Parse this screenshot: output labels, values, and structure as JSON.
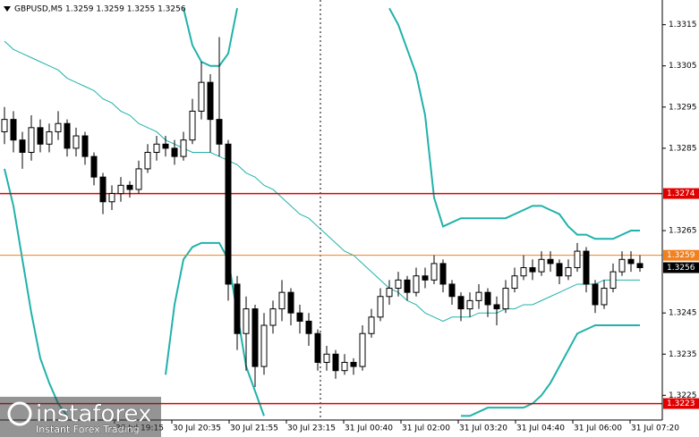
{
  "chart_data": {
    "type": "candlestick",
    "title": "GBPUSD,M5  1.3259 1.3259 1.3255 1.3256",
    "ylim": [
      1.3219,
      1.3321
    ],
    "yticks": [
      1.3315,
      1.3305,
      1.3295,
      1.3285,
      1.3265,
      1.3245,
      1.3235,
      1.3225
    ],
    "time_labels": [
      "30 Jul 19:15",
      "30 Jul 20:35",
      "30 Jul 21:55",
      "30 Jul 23:15",
      "31 Jul 00:40",
      "31 Jul 02:00",
      "31 Jul 03:20",
      "31 Jul 04:40",
      "31 Jul 06:00",
      "31 Jul 07:20"
    ],
    "candle_colors": {
      "up": "#ffffff",
      "down": "#000000",
      "outline": "#000000"
    },
    "open": [
      1.3289,
      1.3292,
      1.3287,
      1.3284,
      1.329,
      1.3286,
      1.3289,
      1.3291,
      1.3285,
      1.3288,
      1.3283,
      1.3278,
      1.3272,
      1.3274,
      1.3276,
      1.3275,
      1.328,
      1.3284,
      1.3286,
      1.3285,
      1.3283,
      1.3287,
      1.3294,
      1.3301,
      1.3292,
      1.3286,
      1.3252,
      1.324,
      1.3246,
      1.3232,
      1.3242,
      1.3246,
      1.325,
      1.3245,
      1.3243,
      1.324,
      1.3233,
      1.3235,
      1.3231,
      1.3233,
      1.3232,
      1.324,
      1.3244,
      1.3249,
      1.3251,
      1.3253,
      1.325,
      1.3254,
      1.3253,
      1.3257,
      1.3252,
      1.3249,
      1.3246,
      1.3248,
      1.325,
      1.3247,
      1.3246,
      1.3251,
      1.3254,
      1.3256,
      1.3255,
      1.3258,
      1.3257,
      1.3254,
      1.3256,
      1.326,
      1.3252,
      1.3247,
      1.3251,
      1.3255,
      1.3258,
      1.3257
    ],
    "high": [
      1.3295,
      1.3294,
      1.3289,
      1.3293,
      1.3292,
      1.3291,
      1.3294,
      1.3292,
      1.329,
      1.3289,
      1.3284,
      1.3279,
      1.3276,
      1.3278,
      1.3277,
      1.3282,
      1.3286,
      1.3288,
      1.3288,
      1.3287,
      1.3289,
      1.3297,
      1.3306,
      1.3303,
      1.3312,
      1.3287,
      1.3254,
      1.3249,
      1.3247,
      1.3245,
      1.3248,
      1.3253,
      1.3251,
      1.3247,
      1.3245,
      1.3241,
      1.3237,
      1.3236,
      1.3235,
      1.3234,
      1.3242,
      1.3246,
      1.3251,
      1.3253,
      1.3255,
      1.3254,
      1.3256,
      1.3256,
      1.3259,
      1.3258,
      1.3253,
      1.325,
      1.325,
      1.3252,
      1.3251,
      1.3249,
      1.3253,
      1.3256,
      1.3259,
      1.3258,
      1.326,
      1.326,
      1.3258,
      1.3258,
      1.3262,
      1.3261,
      1.3253,
      1.3253,
      1.3257,
      1.326,
      1.326,
      1.3259
    ],
    "low": [
      1.3286,
      1.3284,
      1.328,
      1.3282,
      1.3284,
      1.3284,
      1.3287,
      1.3283,
      1.3283,
      1.3281,
      1.3276,
      1.3269,
      1.327,
      1.3272,
      1.3273,
      1.3274,
      1.3279,
      1.3282,
      1.3283,
      1.3281,
      1.3282,
      1.3286,
      1.3292,
      1.3284,
      1.3283,
      1.3248,
      1.3236,
      1.3231,
      1.3227,
      1.323,
      1.324,
      1.3243,
      1.3242,
      1.324,
      1.3237,
      1.3231,
      1.3231,
      1.3229,
      1.323,
      1.323,
      1.3231,
      1.3239,
      1.3243,
      1.3247,
      1.3249,
      1.3248,
      1.3249,
      1.3251,
      1.3252,
      1.325,
      1.3247,
      1.3243,
      1.3244,
      1.3246,
      1.3244,
      1.3242,
      1.3245,
      1.325,
      1.3253,
      1.3253,
      1.3254,
      1.3255,
      1.3252,
      1.3253,
      1.3255,
      1.325,
      1.3245,
      1.3246,
      1.325,
      1.3254,
      1.3255,
      1.3255
    ],
    "close": [
      1.3292,
      1.3287,
      1.3284,
      1.329,
      1.3286,
      1.3289,
      1.3291,
      1.3285,
      1.3288,
      1.3283,
      1.3278,
      1.3272,
      1.3274,
      1.3276,
      1.3275,
      1.328,
      1.3284,
      1.3286,
      1.3285,
      1.3283,
      1.3287,
      1.3294,
      1.3301,
      1.3292,
      1.3286,
      1.3252,
      1.324,
      1.3246,
      1.3232,
      1.3242,
      1.3246,
      1.325,
      1.3245,
      1.3243,
      1.324,
      1.3233,
      1.3235,
      1.3231,
      1.3233,
      1.3232,
      1.324,
      1.3244,
      1.3249,
      1.3251,
      1.3253,
      1.325,
      1.3254,
      1.3253,
      1.3257,
      1.3252,
      1.3249,
      1.3246,
      1.3248,
      1.325,
      1.3247,
      1.3246,
      1.3251,
      1.3254,
      1.3256,
      1.3255,
      1.3258,
      1.3257,
      1.3254,
      1.3256,
      1.326,
      1.3252,
      1.3247,
      1.3251,
      1.3255,
      1.3258,
      1.3257,
      1.3256
    ],
    "indicators": [
      {
        "color": "#20b2aa",
        "width": 2,
        "values": [
          null,
          null,
          null,
          null,
          null,
          null,
          null,
          null,
          null,
          null,
          null,
          null,
          null,
          null,
          null,
          null,
          null,
          null,
          null,
          null,
          1.3319,
          1.331,
          1.3306,
          1.3305,
          1.3305,
          1.3308,
          1.3319,
          null,
          null,
          null,
          null,
          null,
          null,
          null,
          null,
          null,
          null,
          null,
          null,
          null,
          null,
          null,
          null,
          1.3319,
          1.3315,
          1.3309,
          1.3303,
          1.3293,
          1.3273,
          1.3266,
          1.3267,
          1.3268,
          1.3268,
          1.3268,
          1.3268,
          1.3268,
          1.3268,
          1.3269,
          1.327,
          1.3271,
          1.3271,
          1.327,
          1.3269,
          1.3266,
          1.3264,
          1.3264,
          1.3263,
          1.3263,
          1.3263,
          1.3264,
          1.3265,
          1.3265
        ]
      },
      {
        "color": "#20b2aa",
        "width": 2,
        "values": [
          1.328,
          1.3271,
          1.3258,
          1.3245,
          1.3234,
          1.3228,
          1.3223,
          1.322,
          null,
          null,
          null,
          null,
          null,
          null,
          null,
          null,
          null,
          null,
          1.323,
          1.3247,
          1.3258,
          1.3261,
          1.3262,
          1.3262,
          1.3262,
          1.3258,
          1.3245,
          1.3232,
          1.3226,
          1.322,
          null,
          null,
          null,
          null,
          null,
          null,
          null,
          null,
          null,
          null,
          null,
          null,
          null,
          null,
          null,
          null,
          null,
          null,
          null,
          null,
          null,
          1.322,
          1.322,
          1.3221,
          1.3222,
          1.3222,
          1.3222,
          1.3222,
          1.3222,
          1.3223,
          1.3225,
          1.3228,
          1.3232,
          1.3236,
          1.324,
          1.3241,
          1.3242,
          1.3242,
          1.3242,
          1.3242,
          1.3242,
          1.3242
        ]
      },
      {
        "color": "#20b2aa",
        "width": 1,
        "values": [
          1.3311,
          1.3309,
          1.3308,
          1.3307,
          1.3306,
          1.3305,
          1.3304,
          1.3302,
          1.3301,
          1.33,
          1.3299,
          1.3297,
          1.3296,
          1.3294,
          1.3293,
          1.3291,
          1.329,
          1.3289,
          1.3287,
          1.3286,
          1.3285,
          1.3284,
          1.3284,
          1.3284,
          1.3283,
          1.3282,
          1.3281,
          1.3279,
          1.3278,
          1.3276,
          1.3275,
          1.3273,
          1.3271,
          1.3269,
          1.3268,
          1.3266,
          1.3264,
          1.3262,
          1.326,
          1.3259,
          1.3257,
          1.3255,
          1.3253,
          1.3251,
          1.325,
          1.3248,
          1.3247,
          1.3245,
          1.3244,
          1.3243,
          1.3244,
          1.3244,
          1.3244,
          1.3245,
          1.3245,
          1.3245,
          1.3246,
          1.3246,
          1.3247,
          1.3247,
          1.3248,
          1.3249,
          1.325,
          1.3251,
          1.3252,
          1.3252,
          1.3252,
          1.3253,
          1.3253,
          1.3253,
          1.3253,
          1.3253
        ]
      }
    ],
    "levels": [
      {
        "value": 1.3274,
        "color": "#e00000"
      },
      {
        "value": 1.3259,
        "color": "#f08020"
      },
      {
        "value": 1.3223,
        "color": "#e00000"
      }
    ],
    "current_price": {
      "value": 1.3256,
      "color": "#000000"
    },
    "watermark": {
      "brand": "instaforex",
      "tagline": "Instant Forex Trading"
    }
  }
}
